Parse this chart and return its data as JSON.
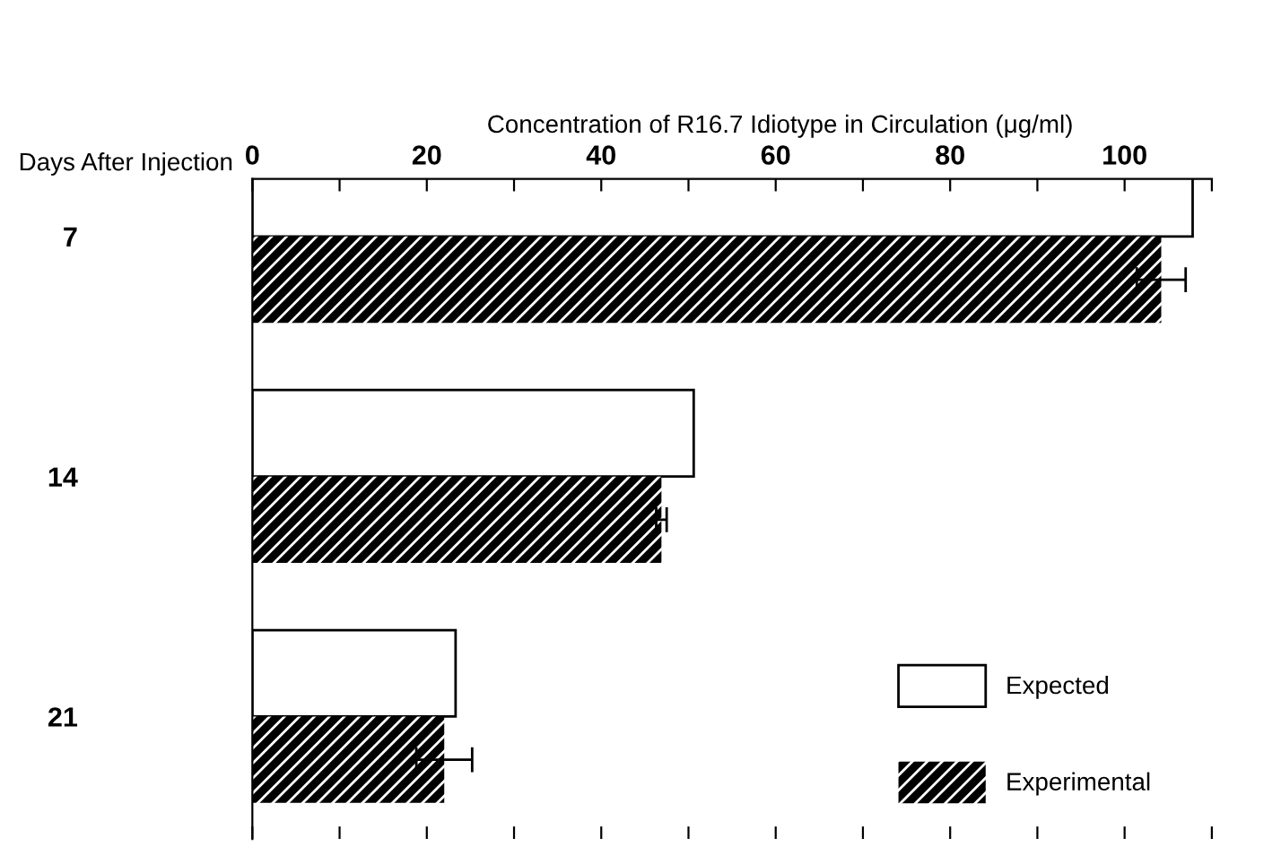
{
  "chart_data": {
    "type": "bar",
    "orientation": "horizontal",
    "xlabel": "Concentration of R16.7 Idiotype in Circulation (μg/ml)",
    "ylabel": "Days After Injection",
    "categories": [
      "7",
      "14",
      "21"
    ],
    "series": [
      {
        "name": "Expected",
        "color": "#ffffff",
        "values": [
          107.8,
          50.6,
          23.3
        ]
      },
      {
        "name": "Experimental",
        "color": "#000000",
        "values": [
          104.2,
          46.9,
          22.0
        ],
        "errors": [
          2.8,
          0.6,
          3.2
        ]
      }
    ],
    "xlim": [
      0,
      110
    ],
    "xticks": [
      0,
      {
        "value": 10,
        "label": null
      },
      20,
      {
        "value": 30,
        "label": null
      },
      40,
      {
        "value": 50,
        "label": null
      },
      60,
      {
        "value": 70,
        "label": null
      },
      80,
      {
        "value": 90,
        "label": null
      },
      100,
      {
        "value": 110,
        "label": null
      }
    ],
    "legend": "bottom right",
    "grid": false
  }
}
